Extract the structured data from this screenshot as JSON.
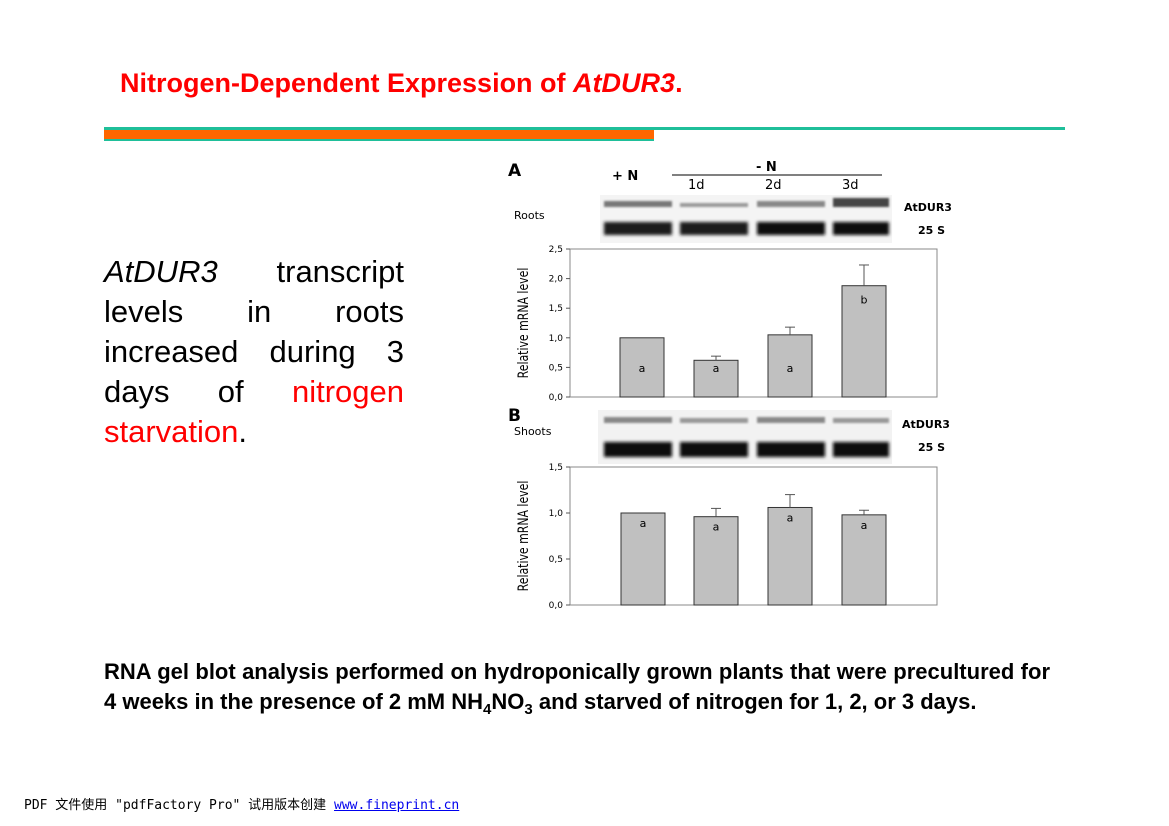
{
  "slide": {
    "title_prefix": "Nitrogen-Dependent Expression of ",
    "title_gene": "AtDUR3",
    "title_suffix": ".",
    "body_gene": "AtDUR3",
    "body_middle": " transcript levels in roots increased during 3 days of ",
    "body_red": "nitrogen starvation",
    "body_end": ".",
    "caption_part1": "RNA gel blot analysis performed on hydroponically grown plants that were precultured for 4 weeks in the presence of 2 mM NH",
    "caption_sub1": "4",
    "caption_part2": "NO",
    "caption_sub2": "3",
    "caption_part3": " and starved of nitrogen for 1, 2, or 3 days.",
    "footer_text": "PDF 文件使用 \"pdfFactory Pro\" 试用版本创建 ",
    "footer_link": "www.fineprint.cn"
  },
  "colors": {
    "title": "#ff0000",
    "accent_teal": "#1fbf9a",
    "accent_orange": "#ff6600",
    "bar": "#c0c0c0"
  },
  "figure": {
    "headers": {
      "plus_n": "+ N",
      "minus_n": "- N",
      "lanes": [
        "1d",
        "2d",
        "3d"
      ]
    },
    "panel_a": {
      "letter": "A",
      "tissue": "Roots",
      "blot_labels": [
        "AtDUR3",
        "25 S"
      ]
    },
    "panel_b": {
      "letter": "B",
      "tissue": "Shoots",
      "blot_labels": [
        "AtDUR3",
        "25 S"
      ]
    }
  },
  "chart_data": [
    {
      "type": "bar",
      "panel": "A",
      "ylabel": "Relative mRNA level",
      "ylim": [
        0,
        2.5
      ],
      "yticks": [
        "0,0",
        "0,5",
        "1,0",
        "1,5",
        "2,0",
        "2,5"
      ],
      "values": [
        1.0,
        0.62,
        1.05,
        1.88
      ],
      "errors": [
        0.0,
        0.07,
        0.13,
        0.35
      ],
      "letters": [
        "a",
        "a",
        "a",
        "b"
      ]
    },
    {
      "type": "bar",
      "panel": "B",
      "ylabel": "Relative mRNA level",
      "ylim": [
        0,
        1.5
      ],
      "yticks": [
        "0,0",
        "0,5",
        "1,0",
        "1,5"
      ],
      "values": [
        1.0,
        0.96,
        1.06,
        0.98
      ],
      "errors": [
        0.0,
        0.09,
        0.14,
        0.05
      ],
      "letters": [
        "a",
        "a",
        "a",
        "a"
      ]
    }
  ]
}
